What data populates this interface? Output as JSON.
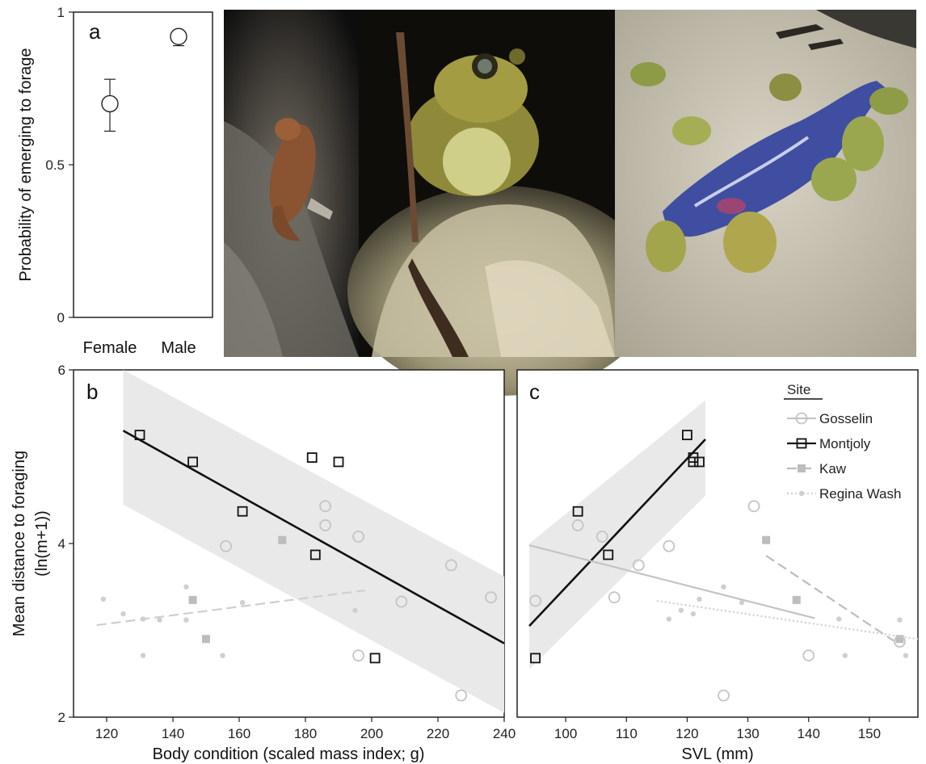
{
  "colors": {
    "gosselin": "#c4c4c4",
    "montjoly": "#111111",
    "kaw": "#bdbdbd",
    "regina": "#cfcfcf",
    "ci_band": "#e9e9e9"
  },
  "photos": [
    {
      "name": "toad-on-rock-photo"
    },
    {
      "name": "toad-portrait-photo"
    },
    {
      "name": "toads-around-fish-photo"
    }
  ],
  "chart_data": [
    {
      "id": "a",
      "type": "scatter",
      "panel_label": "a",
      "ylabel": "Probability of emerging to forage",
      "categories": [
        "Female",
        "Male"
      ],
      "yticks": [
        "0",
        "0.5",
        "1"
      ],
      "ylim": [
        0,
        1
      ],
      "points": [
        {
          "category": "Female",
          "y": 0.7,
          "lower": 0.61,
          "upper": 0.78
        },
        {
          "category": "Male",
          "y": 0.92,
          "lower": 0.89,
          "upper": 0.94
        }
      ]
    },
    {
      "id": "b",
      "type": "scatter",
      "panel_label": "b",
      "xlabel": "Body condition (scaled mass index; g)",
      "ylabel": "Mean distance to foraging",
      "ylabel2": "(ln(m+1))",
      "xlim": [
        110,
        240
      ],
      "ylim": [
        2,
        6
      ],
      "xticks": [
        "120",
        "140",
        "160",
        "180",
        "200",
        "220",
        "240"
      ],
      "yticks": [
        "2",
        "4",
        "6"
      ],
      "series": [
        {
          "name": "Gosselin",
          "marker": "circle",
          "points": [
            [
              156,
              3.97
            ],
            [
              186,
              4.43
            ],
            [
              186,
              4.21
            ],
            [
              196,
              4.08
            ],
            [
              224,
              3.75
            ],
            [
              209,
              3.33
            ],
            [
              236,
              3.38
            ],
            [
              196,
              2.71
            ],
            [
              227,
              2.25
            ]
          ]
        },
        {
          "name": "Montjoly",
          "marker": "square",
          "points": [
            [
              130,
              5.25
            ],
            [
              146,
              4.94
            ],
            [
              182,
              4.99
            ],
            [
              190,
              4.94
            ],
            [
              161,
              4.37
            ],
            [
              183,
              3.87
            ],
            [
              201,
              2.68
            ]
          ]
        },
        {
          "name": "Kaw",
          "marker": "filled-square",
          "points": [
            [
              173,
              4.04
            ],
            [
              146,
              3.35
            ],
            [
              150,
              2.9
            ]
          ]
        },
        {
          "name": "Regina Wash",
          "marker": "dot",
          "points": [
            [
              119,
              3.36
            ],
            [
              125,
              3.19
            ],
            [
              131,
              3.13
            ],
            [
              136,
              3.12
            ],
            [
              144,
              3.5
            ],
            [
              144,
              3.12
            ],
            [
              161,
              3.32
            ],
            [
              195,
              3.23
            ],
            [
              131,
              2.71
            ],
            [
              155,
              2.71
            ]
          ]
        }
      ],
      "fits": [
        {
          "series": "Montjoly",
          "style": "solid",
          "x": [
            125,
            240
          ],
          "y": [
            5.3,
            2.85
          ],
          "ci_upper": [
            6.0,
            3.62
          ],
          "ci_lower": [
            4.45,
            2.05
          ]
        },
        {
          "series": "Regina Wash",
          "style": "dashed",
          "x": [
            117,
            198
          ],
          "y": [
            3.06,
            3.46
          ]
        }
      ]
    },
    {
      "id": "c",
      "type": "scatter",
      "panel_label": "c",
      "xlabel": "SVL (mm)",
      "xlim": [
        92,
        158
      ],
      "ylim": [
        2,
        6
      ],
      "xticks": [
        "100",
        "110",
        "120",
        "130",
        "140",
        "150"
      ],
      "legend_title": "Site",
      "legend_position": "top-right",
      "series": [
        {
          "name": "Gosselin",
          "marker": "circle",
          "points": [
            [
              95,
              3.34
            ],
            [
              102,
              4.21
            ],
            [
              106,
              4.08
            ],
            [
              112,
              3.75
            ],
            [
              117,
              3.97
            ],
            [
              108,
              3.38
            ],
            [
              131,
              4.43
            ],
            [
              140,
              2.71
            ],
            [
              126,
              2.25
            ],
            [
              155,
              2.87
            ]
          ]
        },
        {
          "name": "Montjoly",
          "marker": "square",
          "points": [
            [
              120,
              5.25
            ],
            [
              121,
              4.99
            ],
            [
              122,
              4.94
            ],
            [
              121,
              4.94
            ],
            [
              102,
              4.37
            ],
            [
              107,
              3.87
            ],
            [
              95,
              2.68
            ]
          ]
        },
        {
          "name": "Kaw",
          "marker": "filled-square",
          "points": [
            [
              133,
              4.04
            ],
            [
              138,
              3.35
            ],
            [
              155,
              2.9
            ]
          ]
        },
        {
          "name": "Regina Wash",
          "marker": "dot",
          "points": [
            [
              117,
              3.13
            ],
            [
              121,
              3.19
            ],
            [
              122,
              3.36
            ],
            [
              126,
              3.5
            ],
            [
              129,
              3.32
            ],
            [
              145,
              3.13
            ],
            [
              146,
              2.71
            ],
            [
              155,
              3.12
            ],
            [
              156,
              2.71
            ],
            [
              119,
              3.23
            ]
          ]
        }
      ],
      "fits": [
        {
          "series": "Montjoly",
          "style": "solid",
          "x": [
            94,
            123
          ],
          "y": [
            3.05,
            5.2
          ],
          "ci_upper": [
            4.0,
            5.65
          ],
          "ci_lower": [
            2.55,
            4.55
          ]
        },
        {
          "series": "Gosselin",
          "style": "solid",
          "x": [
            94,
            141
          ],
          "y": [
            3.98,
            3.14
          ]
        },
        {
          "series": "Kaw",
          "style": "dashed",
          "x": [
            133,
            154
          ],
          "y": [
            3.86,
            2.88
          ]
        },
        {
          "series": "Regina Wash",
          "style": "dotted",
          "x": [
            115,
            158
          ],
          "y": [
            3.34,
            2.9
          ]
        }
      ]
    }
  ]
}
